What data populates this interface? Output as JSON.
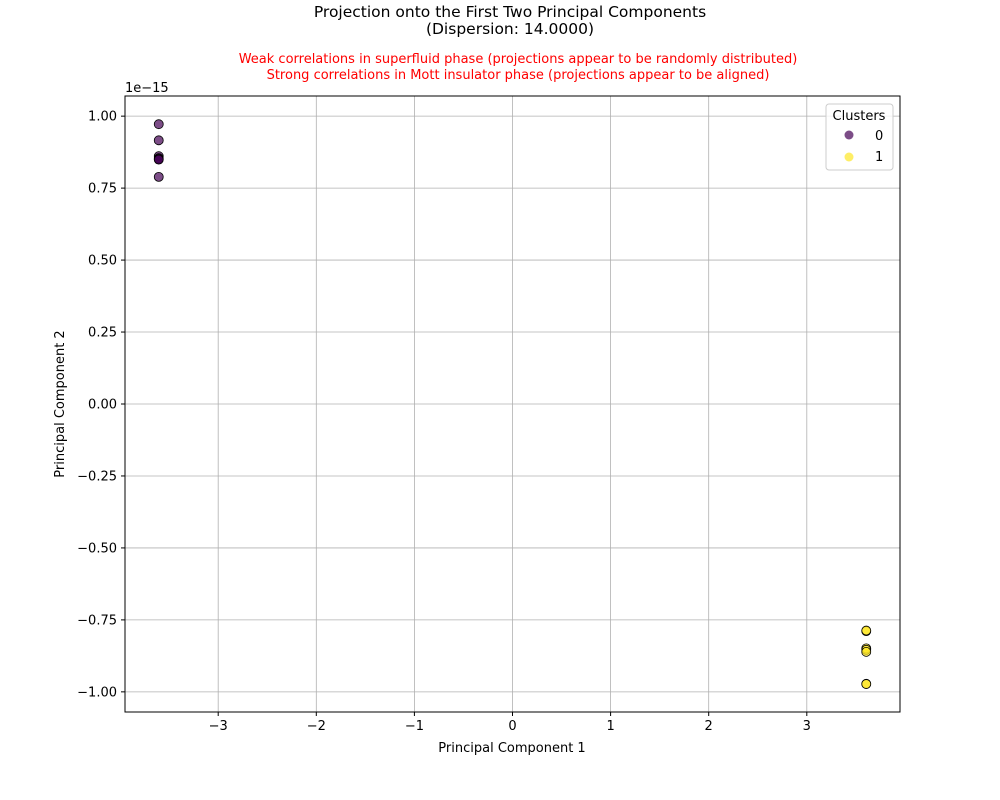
{
  "chart_data": {
    "type": "scatter",
    "title_lines": [
      "Projection onto the First Two Principal Components",
      "(Dispersion: 14.0000)"
    ],
    "subtitle_lines": [
      "Weak correlations in superfluid phase (projections appear to be randomly distributed)",
      "Strong correlations in Mott insulator phase (projections appear to be aligned)"
    ],
    "xlabel": "Principal Component 1",
    "ylabel": "Principal Component 2",
    "y_offset_label": "1e−15",
    "xlim": [
      -3.95,
      3.95
    ],
    "ylim": [
      -1.07,
      1.07
    ],
    "x_ticks": [
      -3,
      -2,
      -1,
      0,
      1,
      2,
      3
    ],
    "x_tick_labels": [
      "−3",
      "−2",
      "−1",
      "0",
      "1",
      "2",
      "3"
    ],
    "y_ticks": [
      1.0,
      0.75,
      0.5,
      0.25,
      0.0,
      -0.25,
      -0.5,
      -0.75,
      -1.0
    ],
    "y_tick_labels": [
      "1.00",
      "0.75",
      "0.50",
      "0.25",
      "0.00",
      "−0.25",
      "−0.50",
      "−0.75",
      "−1.00"
    ],
    "y_scale_note": "y values in units of 1e-15",
    "grid": true,
    "legend": {
      "title": "Clusters",
      "placement": "top-right",
      "entries": [
        "0",
        "1"
      ]
    },
    "series": [
      {
        "name": "0",
        "color": "#440154",
        "points": [
          {
            "x": -3.606,
            "y": 0.972
          },
          {
            "x": -3.606,
            "y": 0.916
          },
          {
            "x": -3.606,
            "y": 0.861
          },
          {
            "x": -3.606,
            "y": 0.854
          },
          {
            "x": -3.606,
            "y": 0.851
          },
          {
            "x": -3.606,
            "y": 0.849
          },
          {
            "x": -3.606,
            "y": 0.789
          }
        ]
      },
      {
        "name": "1",
        "color": "#fde725",
        "points": [
          {
            "x": 3.606,
            "y": -0.789
          },
          {
            "x": 3.606,
            "y": -0.787
          },
          {
            "x": 3.606,
            "y": -0.849
          },
          {
            "x": 3.606,
            "y": -0.854
          },
          {
            "x": 3.606,
            "y": -0.861
          },
          {
            "x": 3.606,
            "y": -0.972
          },
          {
            "x": 3.606,
            "y": -0.973
          }
        ]
      }
    ]
  }
}
